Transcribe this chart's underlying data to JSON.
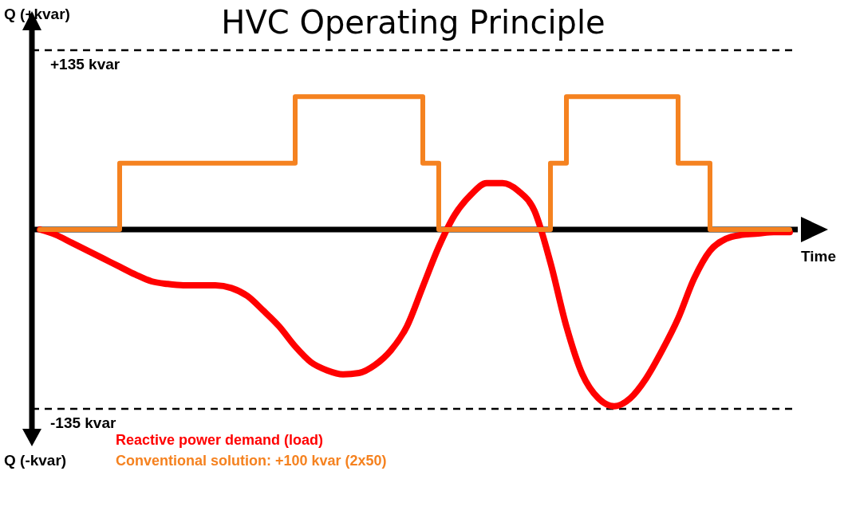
{
  "chart_data": {
    "type": "line",
    "title": "HVC Operating Principle",
    "xlabel": "Time",
    "ylabel": "Q (+kvar)",
    "annotations": [
      "Q (-kvar)"
    ],
    "categories": [
      null,
      null,
      null,
      null,
      null,
      null,
      null,
      null,
      null,
      null,
      null,
      null,
      null,
      null,
      null,
      null,
      null,
      null,
      null,
      null,
      null,
      null,
      null,
      null,
      null,
      null,
      null,
      null,
      null,
      null,
      null,
      null,
      null,
      null,
      null,
      null,
      null,
      null,
      null,
      null,
      null,
      null,
      null,
      null,
      null,
      null,
      null,
      null
    ],
    "series": [
      {
        "name": "Reactive power demand (load)",
        "color": "#ff0000",
        "values": [
          0,
          -4,
          -10,
          -16,
          -22,
          -28,
          -34,
          -39,
          -41,
          -42,
          -42,
          -42,
          -44,
          -50,
          -61,
          -73,
          -88,
          -100,
          -106,
          -109,
          -108,
          -102,
          -91,
          -73,
          -43,
          -13,
          11,
          26,
          35,
          35,
          29,
          14,
          -25,
          -73,
          -109,
          -127,
          -133,
          -127,
          -112,
          -91,
          -67,
          -37,
          -16,
          -7,
          -4,
          -3,
          -2,
          -2
        ]
      },
      {
        "name": "Conventional solution: +100 kvar (2x50)",
        "color": "#f58220",
        "type": "step",
        "values": [
          0,
          0,
          0,
          0,
          0,
          50,
          50,
          50,
          50,
          50,
          50,
          50,
          50,
          50,
          50,
          50,
          100,
          100,
          100,
          100,
          100,
          100,
          100,
          100,
          50,
          0,
          0,
          0,
          0,
          0,
          0,
          0,
          50,
          100,
          100,
          100,
          100,
          100,
          100,
          100,
          50,
          50,
          0,
          0,
          0,
          0,
          0,
          0
        ]
      }
    ],
    "ylim": [
      -150,
      150
    ],
    "yticks": [
      {
        "value": 135,
        "label": "+135 kvar"
      },
      {
        "value": -135,
        "label": "-135 kvar"
      }
    ],
    "grid": "y",
    "legend": "bottom left"
  }
}
